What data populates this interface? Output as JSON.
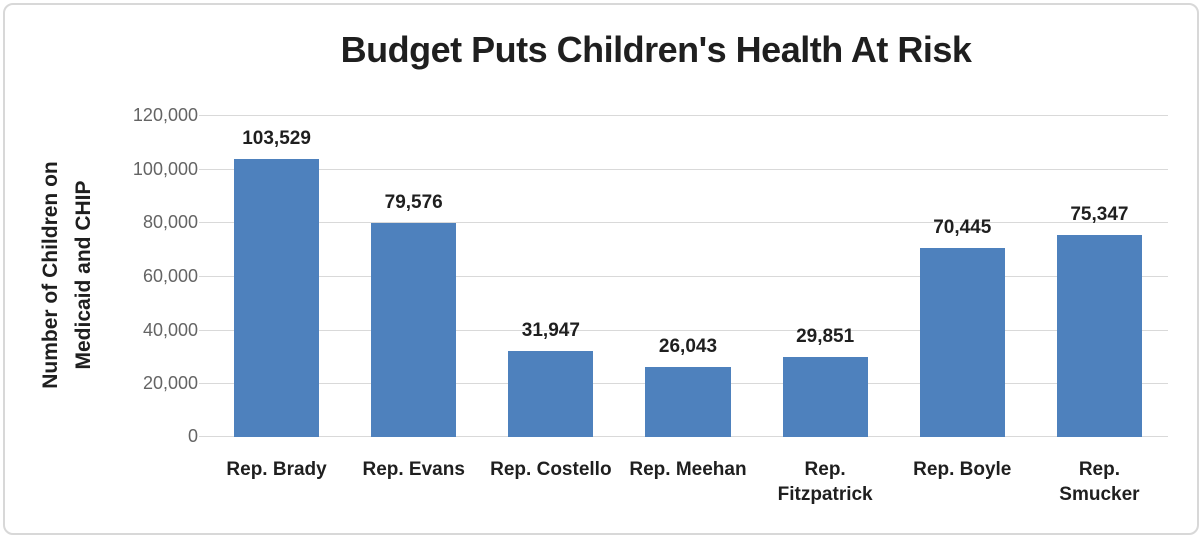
{
  "chart_data": {
    "type": "bar",
    "title": "Budget Puts Children's Health At Risk",
    "ylabel": "Number of Children on\nMedicaid and CHIP",
    "xlabel": "",
    "categories": [
      "Rep. Brady",
      "Rep. Evans",
      "Rep. Costello",
      "Rep. Meehan",
      "Rep.\nFitzpatrick",
      "Rep. Boyle",
      "Rep.\nSmucker"
    ],
    "values": [
      103529,
      79576,
      31947,
      26043,
      29851,
      70445,
      75347
    ],
    "value_labels": [
      "103,529",
      "79,576",
      "31,947",
      "26,043",
      "29,851",
      "70,445",
      "75,347"
    ],
    "ylim": [
      0,
      120000
    ],
    "ytick_step": 20000,
    "ytick_labels": [
      "0",
      "20,000",
      "40,000",
      "60,000",
      "80,000",
      "100,000",
      "120,000"
    ],
    "grid": true,
    "legend_position": "none",
    "colors": {
      "bar_fill": "#4E81BD",
      "gridline": "#D9D9D9",
      "tick_label": "#646464",
      "text": "#1F1F1F",
      "frame_border": "#D8D8D8"
    }
  }
}
